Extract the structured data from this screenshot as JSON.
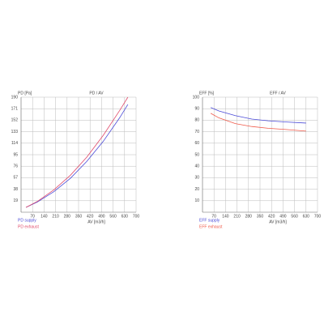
{
  "chart_data": [
    {
      "type": "line",
      "title": "PD / AV",
      "y_label": "PD [Pa]",
      "x_label": "AV [m3/h]",
      "x": [
        30,
        100,
        200,
        300,
        400,
        500,
        600,
        650
      ],
      "series": [
        {
          "name": "PD supply",
          "color": "#4a4ad8",
          "values": [
            8,
            17,
            34,
            56,
            84,
            117,
            156,
            178
          ]
        },
        {
          "name": "PD exhaust",
          "color": "#e04a6a",
          "values": [
            8,
            18,
            37,
            61,
            91,
            127,
            168,
            190
          ]
        }
      ],
      "xlim": [
        0,
        700
      ],
      "xticks": [
        70,
        140,
        210,
        280,
        350,
        420,
        490,
        560,
        630,
        700
      ],
      "ylim": [
        0,
        190
      ],
      "yticks": [
        19,
        38,
        57,
        76,
        95,
        114,
        133,
        152,
        171,
        190
      ],
      "grid": true
    },
    {
      "type": "line",
      "title": "EFF / AV",
      "y_label": "EFF [%]",
      "x_label": "AV [m3/h]",
      "x": [
        50,
        100,
        200,
        300,
        400,
        500,
        630
      ],
      "series": [
        {
          "name": "EFF supply",
          "color": "#4a4ad8",
          "values": [
            91,
            88,
            84,
            81,
            79.5,
            78.5,
            77.5
          ]
        },
        {
          "name": "EFF exhaust",
          "color": "#f05a4a",
          "values": [
            86,
            82,
            77,
            74.5,
            73,
            72,
            70.5
          ]
        }
      ],
      "xlim": [
        0,
        700
      ],
      "xticks": [
        70,
        140,
        210,
        280,
        350,
        420,
        490,
        560,
        630,
        700
      ],
      "ylim": [
        0,
        100
      ],
      "yticks": [
        10,
        20,
        30,
        40,
        50,
        60,
        70,
        80,
        90,
        100
      ],
      "grid": true
    }
  ]
}
